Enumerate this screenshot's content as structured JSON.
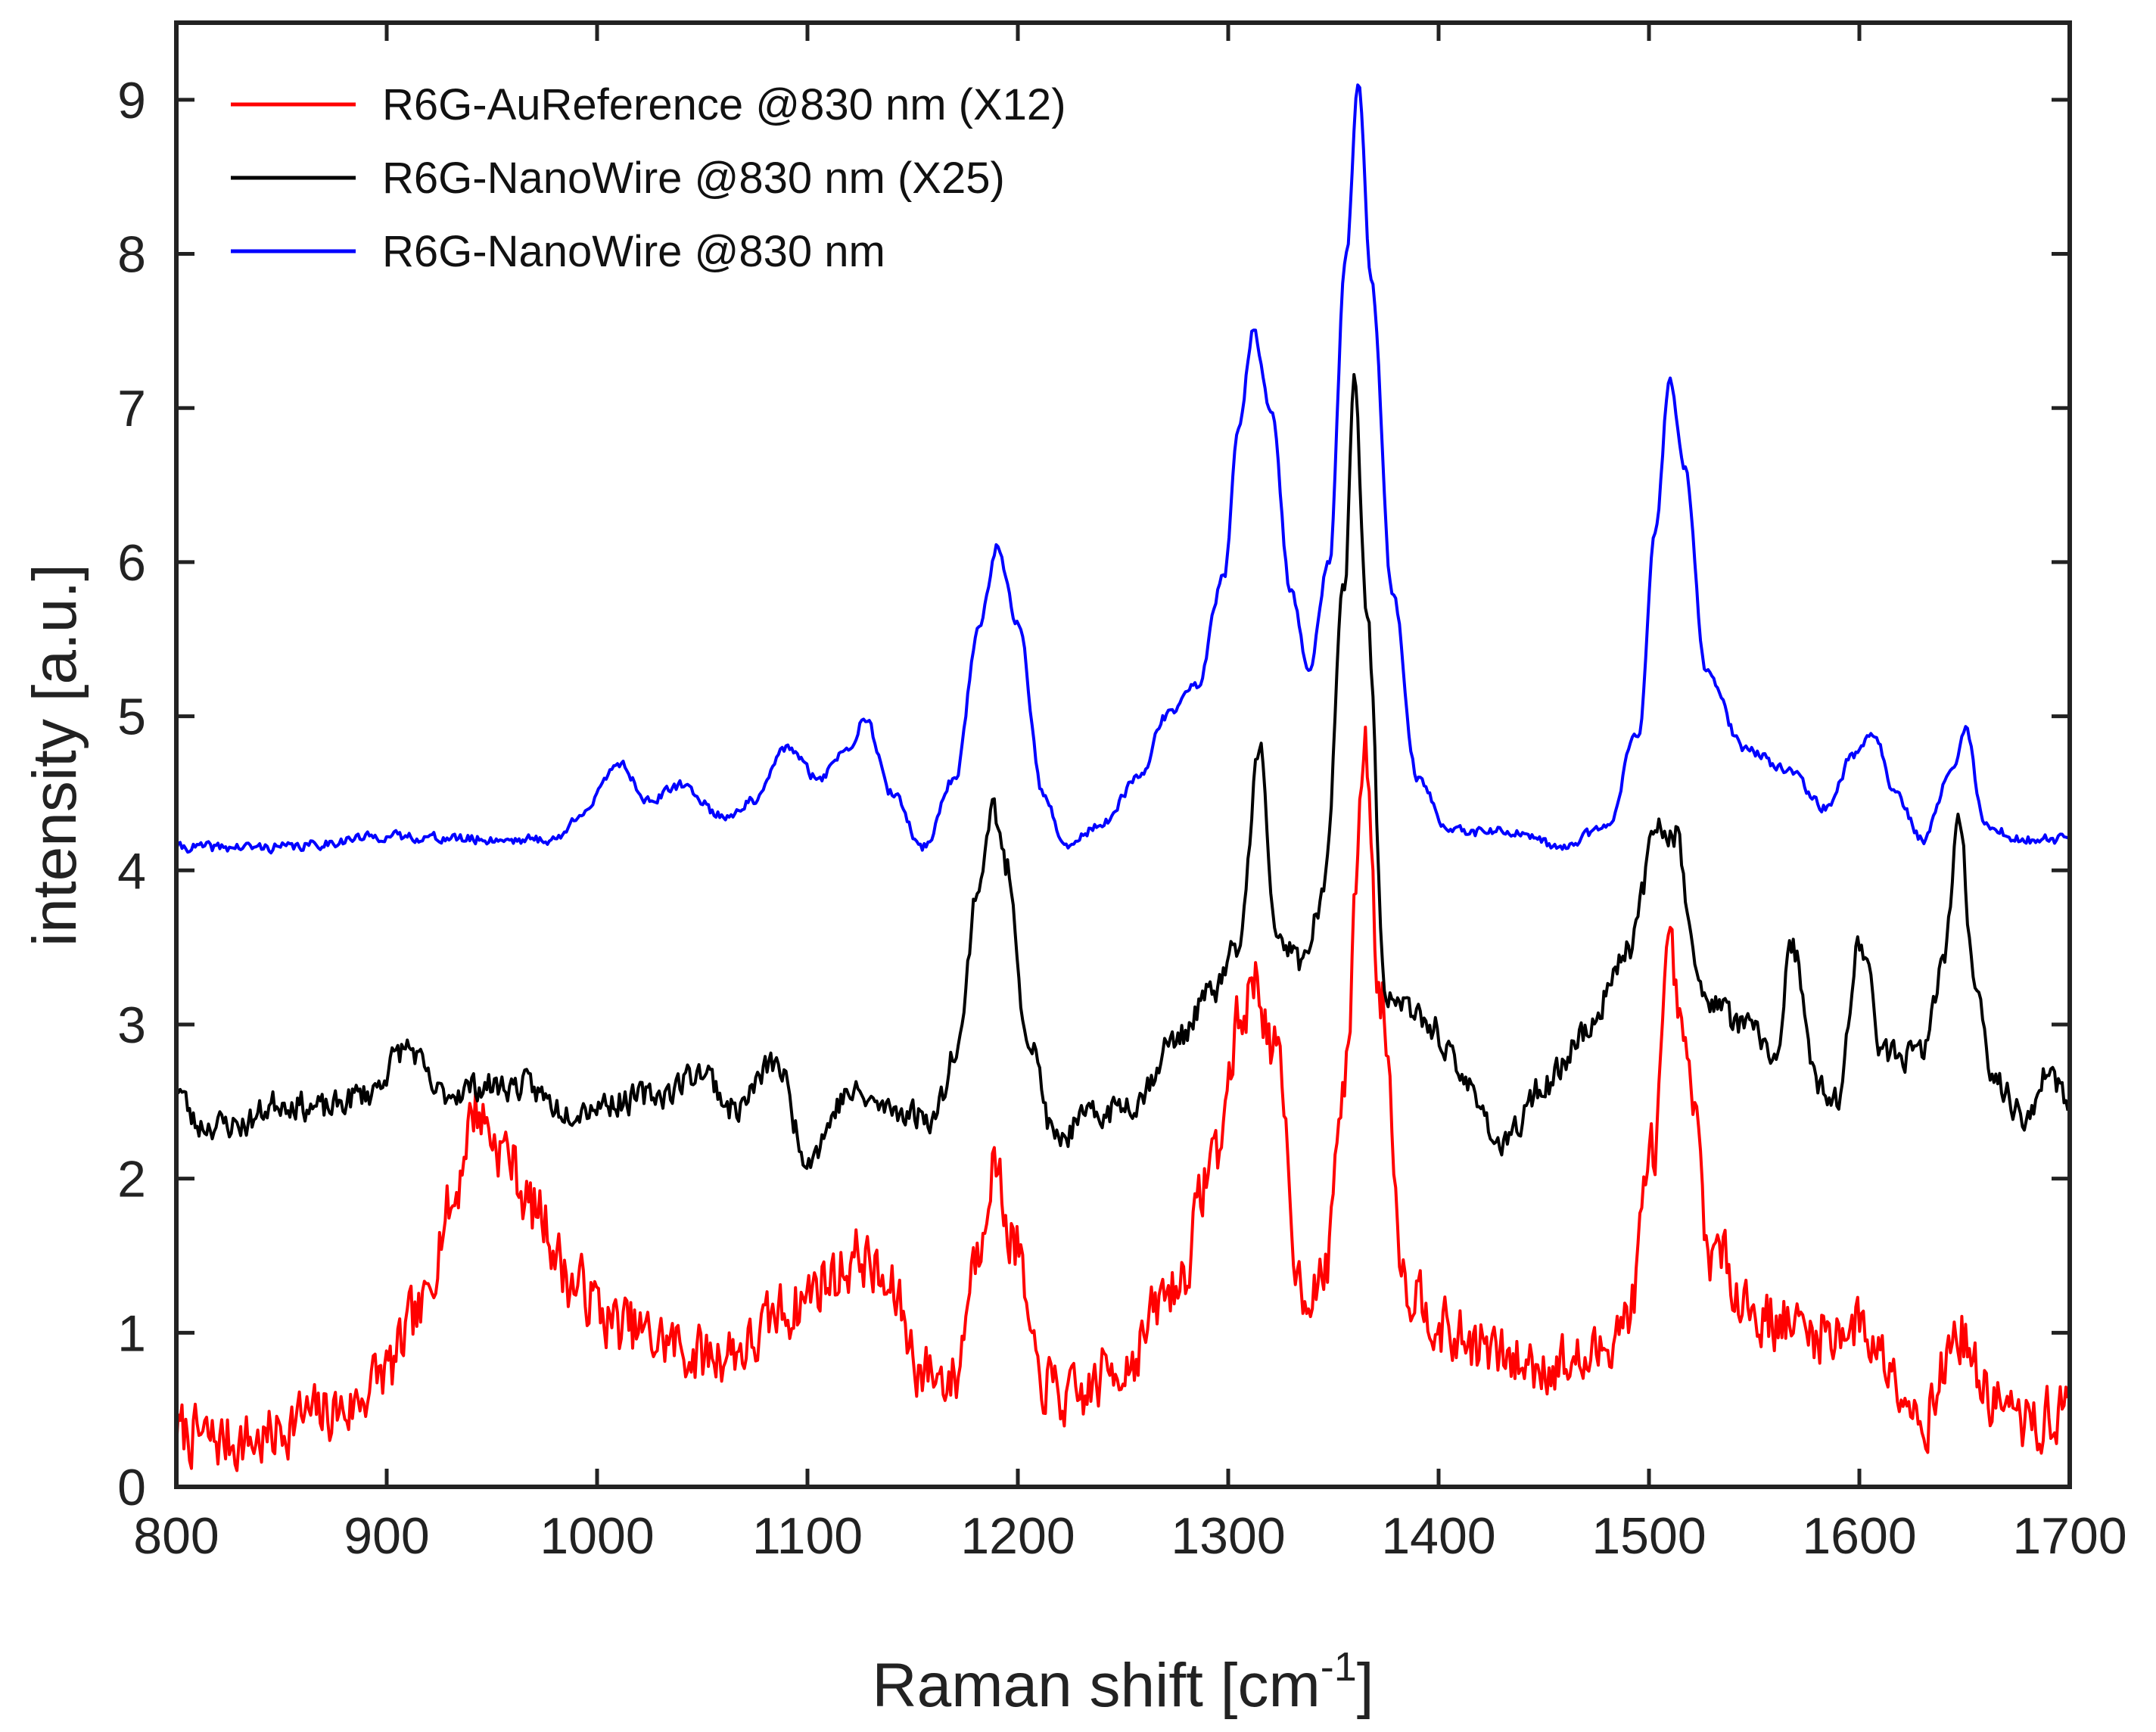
{
  "chart_data": {
    "type": "line",
    "title": "",
    "xlabel": "Raman shift [cm",
    "xlabel_sup": "-1",
    "xlabel_end": "]",
    "ylabel": "intensity [a.u.]",
    "xlim": [
      800,
      1700
    ],
    "ylim": [
      0,
      9.5
    ],
    "xticks": [
      800,
      900,
      1000,
      1100,
      1200,
      1300,
      1400,
      1500,
      1600,
      1700
    ],
    "yticks": [
      0,
      1,
      2,
      3,
      4,
      5,
      6,
      7,
      8,
      9
    ],
    "grid": false,
    "legend_position": "top-left",
    "series": [
      {
        "name": "R6G-AuReference @830 nm (X12)",
        "color": "#ff0000",
        "noise": 0.28,
        "seed": 7,
        "points": [
          [
            800,
            0.35
          ],
          [
            820,
            0.3
          ],
          [
            840,
            0.3
          ],
          [
            860,
            0.45
          ],
          [
            880,
            0.5
          ],
          [
            900,
            0.75
          ],
          [
            915,
            1.1
          ],
          [
            930,
            1.8
          ],
          [
            942,
            2.45
          ],
          [
            955,
            2.2
          ],
          [
            970,
            1.8
          ],
          [
            990,
            1.3
          ],
          [
            1010,
            1.05
          ],
          [
            1030,
            0.95
          ],
          [
            1050,
            0.85
          ],
          [
            1070,
            0.9
          ],
          [
            1090,
            1.15
          ],
          [
            1110,
            1.35
          ],
          [
            1125,
            1.5
          ],
          [
            1140,
            1.25
          ],
          [
            1155,
            0.75
          ],
          [
            1170,
            0.7
          ],
          [
            1180,
            1.5
          ],
          [
            1188,
            2.1
          ],
          [
            1198,
            1.6
          ],
          [
            1210,
            0.7
          ],
          [
            1225,
            0.55
          ],
          [
            1250,
            0.8
          ],
          [
            1275,
            1.3
          ],
          [
            1295,
            2.2
          ],
          [
            1305,
            3.0
          ],
          [
            1313,
            3.3
          ],
          [
            1322,
            2.8
          ],
          [
            1335,
            1.3
          ],
          [
            1345,
            1.3
          ],
          [
            1355,
            2.6
          ],
          [
            1365,
            4.8
          ],
          [
            1372,
            3.2
          ],
          [
            1385,
            1.3
          ],
          [
            1410,
            0.95
          ],
          [
            1440,
            0.8
          ],
          [
            1470,
            0.8
          ],
          [
            1490,
            1.1
          ],
          [
            1502,
            2.2
          ],
          [
            1510,
            3.4
          ],
          [
            1518,
            2.7
          ],
          [
            1530,
            1.5
          ],
          [
            1555,
            1.1
          ],
          [
            1580,
            1.0
          ],
          [
            1600,
            1.05
          ],
          [
            1615,
            0.8
          ],
          [
            1630,
            0.45
          ],
          [
            1648,
            1.0
          ],
          [
            1660,
            0.6
          ],
          [
            1680,
            0.4
          ],
          [
            1700,
            0.5
          ]
        ]
      },
      {
        "name": "R6G-NanoWire @830 nm (X25)",
        "color": "#000000",
        "noise": 0.13,
        "seed": 23,
        "points": [
          [
            800,
            2.6
          ],
          [
            810,
            2.35
          ],
          [
            830,
            2.35
          ],
          [
            850,
            2.5
          ],
          [
            870,
            2.45
          ],
          [
            890,
            2.55
          ],
          [
            910,
            2.85
          ],
          [
            925,
            2.55
          ],
          [
            945,
            2.6
          ],
          [
            965,
            2.6
          ],
          [
            985,
            2.45
          ],
          [
            1010,
            2.5
          ],
          [
            1030,
            2.55
          ],
          [
            1050,
            2.7
          ],
          [
            1065,
            2.45
          ],
          [
            1085,
            2.75
          ],
          [
            1100,
            2.15
          ],
          [
            1120,
            2.55
          ],
          [
            1140,
            2.45
          ],
          [
            1160,
            2.4
          ],
          [
            1172,
            2.9
          ],
          [
            1181,
            3.9
          ],
          [
            1188,
            4.4
          ],
          [
            1195,
            4.0
          ],
          [
            1205,
            2.9
          ],
          [
            1218,
            2.25
          ],
          [
            1235,
            2.4
          ],
          [
            1255,
            2.5
          ],
          [
            1275,
            2.9
          ],
          [
            1292,
            3.2
          ],
          [
            1305,
            3.5
          ],
          [
            1315,
            4.8
          ],
          [
            1322,
            3.6
          ],
          [
            1335,
            3.4
          ],
          [
            1345,
            3.8
          ],
          [
            1355,
            5.8
          ],
          [
            1360,
            7.25
          ],
          [
            1366,
            5.6
          ],
          [
            1375,
            3.2
          ],
          [
            1395,
            3.0
          ],
          [
            1415,
            2.6
          ],
          [
            1430,
            2.2
          ],
          [
            1450,
            2.6
          ],
          [
            1470,
            2.95
          ],
          [
            1490,
            3.5
          ],
          [
            1505,
            4.3
          ],
          [
            1512,
            4.25
          ],
          [
            1525,
            3.2
          ],
          [
            1545,
            3.0
          ],
          [
            1560,
            2.8
          ],
          [
            1568,
            3.5
          ],
          [
            1580,
            2.6
          ],
          [
            1590,
            2.5
          ],
          [
            1600,
            3.55
          ],
          [
            1612,
            2.8
          ],
          [
            1630,
            2.8
          ],
          [
            1640,
            3.4
          ],
          [
            1647,
            4.3
          ],
          [
            1655,
            3.3
          ],
          [
            1665,
            2.6
          ],
          [
            1680,
            2.4
          ],
          [
            1690,
            2.7
          ],
          [
            1700,
            2.45
          ]
        ]
      },
      {
        "name": "R6G-NanoWire @830 nm",
        "color": "#0000ff",
        "noise": 0.045,
        "seed": 41,
        "points": [
          [
            800,
            4.15
          ],
          [
            850,
            4.15
          ],
          [
            900,
            4.22
          ],
          [
            950,
            4.2
          ],
          [
            980,
            4.2
          ],
          [
            995,
            4.4
          ],
          [
            1010,
            4.7
          ],
          [
            1025,
            4.45
          ],
          [
            1040,
            4.55
          ],
          [
            1060,
            4.35
          ],
          [
            1075,
            4.45
          ],
          [
            1090,
            4.8
          ],
          [
            1105,
            4.6
          ],
          [
            1120,
            4.8
          ],
          [
            1127,
            5.0
          ],
          [
            1140,
            4.5
          ],
          [
            1155,
            4.15
          ],
          [
            1170,
            4.6
          ],
          [
            1182,
            5.6
          ],
          [
            1190,
            6.1
          ],
          [
            1200,
            5.6
          ],
          [
            1212,
            4.5
          ],
          [
            1222,
            4.15
          ],
          [
            1240,
            4.3
          ],
          [
            1258,
            4.6
          ],
          [
            1270,
            5.0
          ],
          [
            1285,
            5.2
          ],
          [
            1298,
            5.9
          ],
          [
            1305,
            6.9
          ],
          [
            1312,
            7.5
          ],
          [
            1320,
            7.0
          ],
          [
            1330,
            5.8
          ],
          [
            1338,
            5.3
          ],
          [
            1348,
            6.0
          ],
          [
            1356,
            8.0
          ],
          [
            1362,
            9.1
          ],
          [
            1368,
            7.8
          ],
          [
            1378,
            5.8
          ],
          [
            1390,
            4.6
          ],
          [
            1405,
            4.25
          ],
          [
            1430,
            4.25
          ],
          [
            1460,
            4.15
          ],
          [
            1480,
            4.3
          ],
          [
            1495,
            4.9
          ],
          [
            1503,
            6.2
          ],
          [
            1510,
            7.2
          ],
          [
            1517,
            6.6
          ],
          [
            1527,
            5.3
          ],
          [
            1545,
            4.8
          ],
          [
            1565,
            4.65
          ],
          [
            1585,
            4.4
          ],
          [
            1597,
            4.75
          ],
          [
            1607,
            4.9
          ],
          [
            1617,
            4.5
          ],
          [
            1630,
            4.2
          ],
          [
            1645,
            4.7
          ],
          [
            1650,
            4.92
          ],
          [
            1660,
            4.3
          ],
          [
            1675,
            4.2
          ],
          [
            1700,
            4.2
          ]
        ]
      }
    ]
  }
}
